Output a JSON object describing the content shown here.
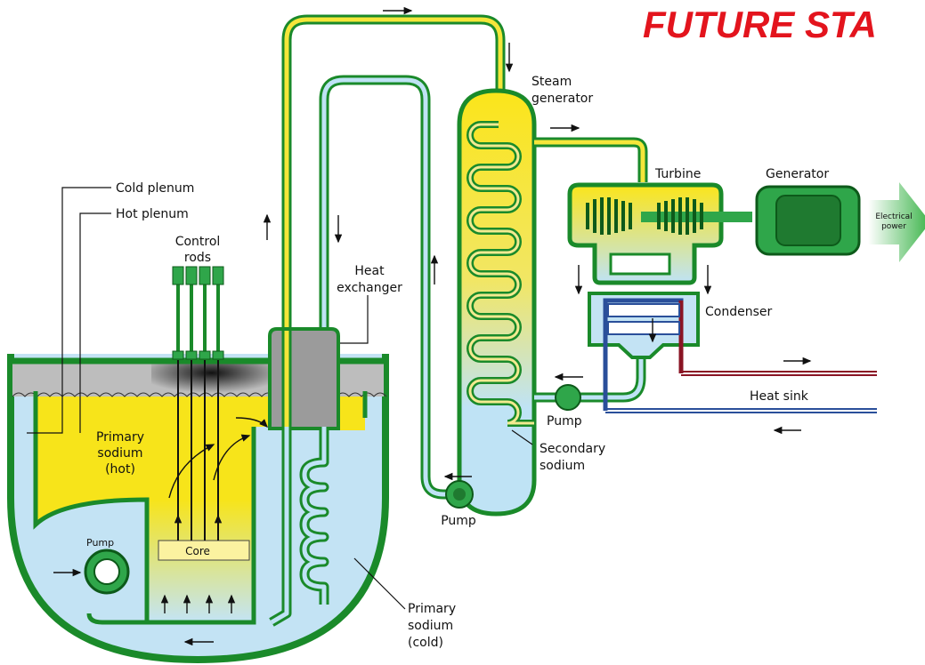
{
  "header": {
    "title": "FUTURE STA"
  },
  "labels": {
    "steam_generator": [
      "Steam",
      "generator"
    ],
    "turbine": "Turbine",
    "generator": "Generator",
    "electrical_power": [
      "Electrical",
      "power"
    ],
    "cold_plenum": "Cold plenum",
    "hot_plenum": "Hot plenum",
    "control_rods": [
      "Control",
      "rods"
    ],
    "heat_exchanger": [
      "Heat",
      "exchanger"
    ],
    "condenser": "Condenser",
    "heat_sink": "Heat sink",
    "secondary_pump": "Pump",
    "secondary_sodium": [
      "Secondary",
      "sodium"
    ],
    "primary_sodium_hot": [
      "Primary",
      "sodium",
      "(hot)"
    ],
    "core": "Core",
    "primary_pump": "Pump",
    "loop_pump": "Pump",
    "primary_sodium_cold": [
      "Primary",
      "sodium",
      "(cold)"
    ]
  }
}
